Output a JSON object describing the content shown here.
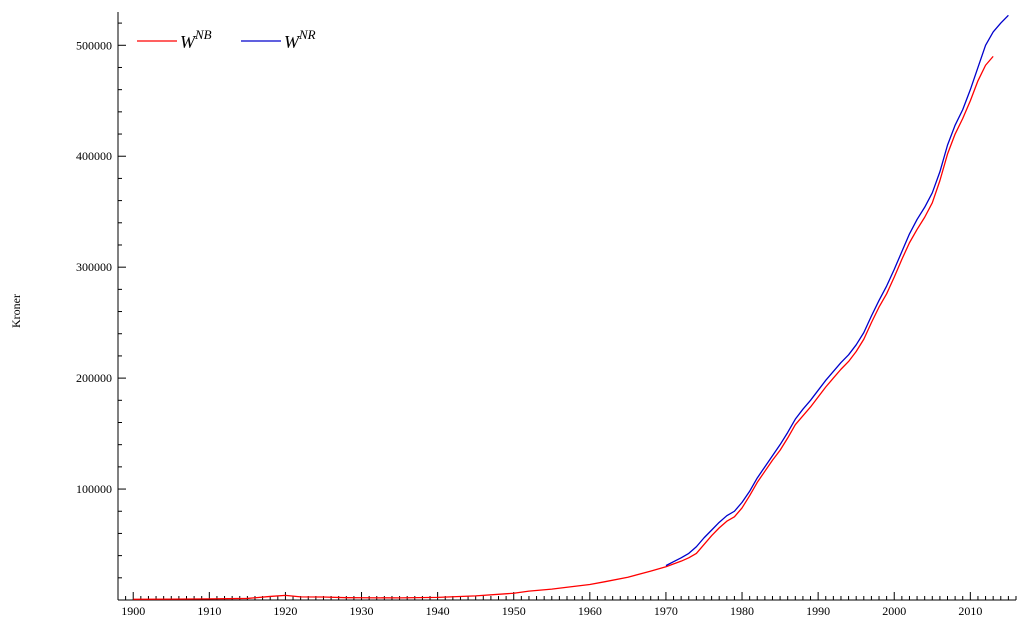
{
  "chart_data": {
    "type": "line",
    "title": "",
    "xlabel": "",
    "ylabel": "Kroner",
    "xlim": [
      1898,
      2016
    ],
    "ylim": [
      0,
      530000
    ],
    "xticks": [
      1900,
      1910,
      1920,
      1930,
      1940,
      1950,
      1960,
      1970,
      1980,
      1990,
      2000,
      2010
    ],
    "yticks": [
      100000,
      200000,
      300000,
      400000,
      500000
    ],
    "grid": false,
    "legend_position": "top-left",
    "series": [
      {
        "name": "W^{NB}",
        "legend_base": "W",
        "legend_sup": "NB",
        "color": "#ff0000",
        "points": [
          [
            1900,
            700
          ],
          [
            1905,
            800
          ],
          [
            1910,
            1000
          ],
          [
            1915,
            1400
          ],
          [
            1918,
            3200
          ],
          [
            1920,
            4200
          ],
          [
            1922,
            2800
          ],
          [
            1925,
            2700
          ],
          [
            1928,
            2100
          ],
          [
            1930,
            2000
          ],
          [
            1935,
            1900
          ],
          [
            1940,
            2400
          ],
          [
            1945,
            3700
          ],
          [
            1950,
            6100
          ],
          [
            1952,
            8000
          ],
          [
            1955,
            9800
          ],
          [
            1957,
            11500
          ],
          [
            1960,
            14000
          ],
          [
            1962,
            16500
          ],
          [
            1965,
            20500
          ],
          [
            1968,
            26000
          ],
          [
            1970,
            30000
          ],
          [
            1972,
            35000
          ],
          [
            1973,
            38000
          ],
          [
            1974,
            42000
          ],
          [
            1975,
            50000
          ],
          [
            1976,
            58000
          ],
          [
            1977,
            65000
          ],
          [
            1978,
            71000
          ],
          [
            1979,
            75000
          ],
          [
            1980,
            83000
          ],
          [
            1981,
            94000
          ],
          [
            1982,
            106000
          ],
          [
            1983,
            116000
          ],
          [
            1984,
            126000
          ],
          [
            1985,
            135000
          ],
          [
            1986,
            146000
          ],
          [
            1987,
            158000
          ],
          [
            1988,
            166000
          ],
          [
            1989,
            174000
          ],
          [
            1990,
            183000
          ],
          [
            1991,
            192000
          ],
          [
            1992,
            200000
          ],
          [
            1993,
            208000
          ],
          [
            1994,
            215000
          ],
          [
            1995,
            224000
          ],
          [
            1996,
            235000
          ],
          [
            1997,
            250000
          ],
          [
            1998,
            264000
          ],
          [
            1999,
            276000
          ],
          [
            2000,
            291000
          ],
          [
            2001,
            307000
          ],
          [
            2002,
            322000
          ],
          [
            2003,
            334000
          ],
          [
            2004,
            345000
          ],
          [
            2005,
            358000
          ],
          [
            2006,
            378000
          ],
          [
            2007,
            402000
          ],
          [
            2008,
            420000
          ],
          [
            2009,
            434000
          ],
          [
            2010,
            450000
          ],
          [
            2011,
            468000
          ],
          [
            2012,
            482000
          ],
          [
            2013,
            490000
          ]
        ]
      },
      {
        "name": "W^{NR}",
        "legend_base": "W",
        "legend_sup": "NR",
        "color": "#0000cc",
        "points": [
          [
            1970,
            31000
          ],
          [
            1971,
            34500
          ],
          [
            1972,
            38000
          ],
          [
            1973,
            42000
          ],
          [
            1974,
            48000
          ],
          [
            1975,
            56000
          ],
          [
            1976,
            63000
          ],
          [
            1977,
            70000
          ],
          [
            1978,
            76000
          ],
          [
            1979,
            80000
          ],
          [
            1980,
            88000
          ],
          [
            1981,
            98000
          ],
          [
            1982,
            110000
          ],
          [
            1983,
            120000
          ],
          [
            1984,
            130000
          ],
          [
            1985,
            140000
          ],
          [
            1986,
            151000
          ],
          [
            1987,
            163000
          ],
          [
            1988,
            172000
          ],
          [
            1989,
            180000
          ],
          [
            1990,
            189000
          ],
          [
            1991,
            198000
          ],
          [
            1992,
            206000
          ],
          [
            1993,
            214000
          ],
          [
            1994,
            221000
          ],
          [
            1995,
            230000
          ],
          [
            1996,
            241000
          ],
          [
            1997,
            256000
          ],
          [
            1998,
            270000
          ],
          [
            1999,
            283000
          ],
          [
            2000,
            298000
          ],
          [
            2001,
            314000
          ],
          [
            2002,
            330000
          ],
          [
            2003,
            343000
          ],
          [
            2004,
            354000
          ],
          [
            2005,
            367000
          ],
          [
            2006,
            386000
          ],
          [
            2007,
            410000
          ],
          [
            2008,
            428000
          ],
          [
            2009,
            442000
          ],
          [
            2010,
            460000
          ],
          [
            2011,
            480000
          ],
          [
            2012,
            500000
          ],
          [
            2013,
            512000
          ],
          [
            2014,
            520000
          ],
          [
            2015,
            527000
          ]
        ]
      }
    ]
  }
}
